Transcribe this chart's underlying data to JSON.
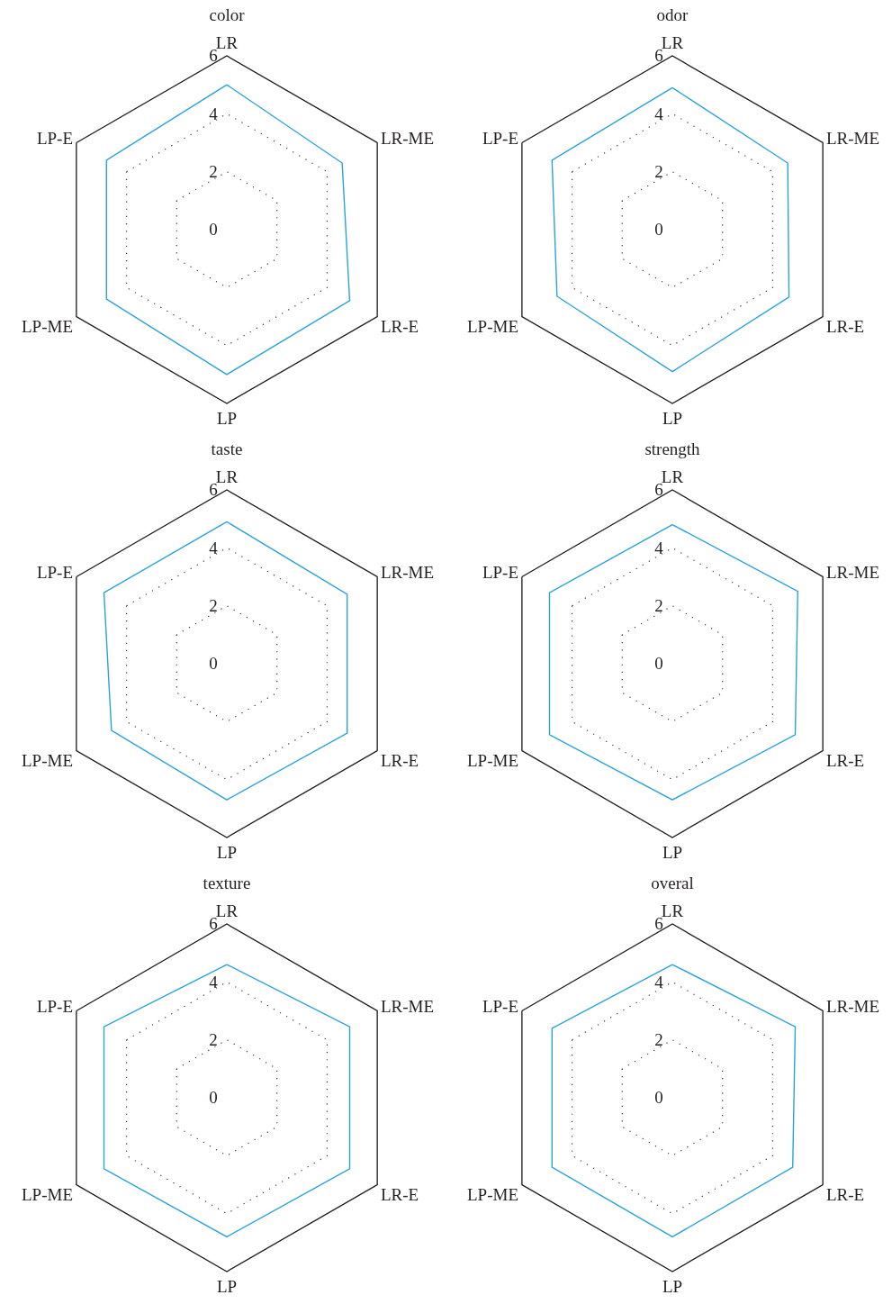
{
  "chart_data": [
    {
      "type": "radar",
      "title": "color",
      "categories": [
        "LR",
        "LR-ME",
        "LR-E",
        "LP",
        "LP-ME",
        "LP-E"
      ],
      "series": [
        {
          "color": "#29a3dc",
          "values": [
            5.0,
            4.6,
            4.9,
            5.0,
            4.8,
            4.8
          ]
        }
      ],
      "ylim": [
        0,
        6
      ],
      "yticks": [
        0,
        2,
        4,
        6
      ],
      "grid": true
    },
    {
      "type": "radar",
      "title": "odor",
      "categories": [
        "LR",
        "LR-ME",
        "LR-E",
        "LP",
        "LP-ME",
        "LP-E"
      ],
      "series": [
        {
          "color": "#29a3dc",
          "values": [
            4.9,
            4.6,
            4.65,
            4.9,
            4.6,
            4.8
          ]
        }
      ],
      "ylim": [
        0,
        6
      ],
      "yticks": [
        0,
        2,
        4,
        6
      ],
      "grid": true
    },
    {
      "type": "radar",
      "title": "taste",
      "categories": [
        "LR",
        "LR-ME",
        "LR-E",
        "LP",
        "LP-ME",
        "LP-E"
      ],
      "series": [
        {
          "color": "#29a3dc",
          "values": [
            4.9,
            4.8,
            4.8,
            4.7,
            4.6,
            4.9
          ]
        }
      ],
      "ylim": [
        0,
        6
      ],
      "yticks": [
        0,
        2,
        4,
        6
      ],
      "grid": true
    },
    {
      "type": "radar",
      "title": "strength",
      "categories": [
        "LR",
        "LR-ME",
        "LR-E",
        "LP",
        "LP-ME",
        "LP-E"
      ],
      "series": [
        {
          "color": "#29a3dc",
          "values": [
            4.8,
            5.0,
            4.9,
            4.7,
            4.9,
            4.9
          ]
        }
      ],
      "ylim": [
        0,
        6
      ],
      "yticks": [
        0,
        2,
        4,
        6
      ],
      "grid": true
    },
    {
      "type": "radar",
      "title": "texture",
      "categories": [
        "LR",
        "LR-ME",
        "LR-E",
        "LP",
        "LP-ME",
        "LP-E"
      ],
      "series": [
        {
          "color": "#29a3dc",
          "values": [
            4.6,
            4.9,
            4.9,
            4.8,
            4.9,
            4.9
          ]
        }
      ],
      "ylim": [
        0,
        6
      ],
      "yticks": [
        0,
        2,
        4,
        6
      ],
      "grid": true
    },
    {
      "type": "radar",
      "title": "overal",
      "categories": [
        "LR",
        "LR-ME",
        "LR-E",
        "LP",
        "LP-ME",
        "LP-E"
      ],
      "series": [
        {
          "color": "#29a3dc",
          "values": [
            4.6,
            4.9,
            4.8,
            4.8,
            4.8,
            4.8
          ]
        }
      ],
      "ylim": [
        0,
        6
      ],
      "yticks": [
        0,
        2,
        4,
        6
      ],
      "grid": true
    }
  ]
}
